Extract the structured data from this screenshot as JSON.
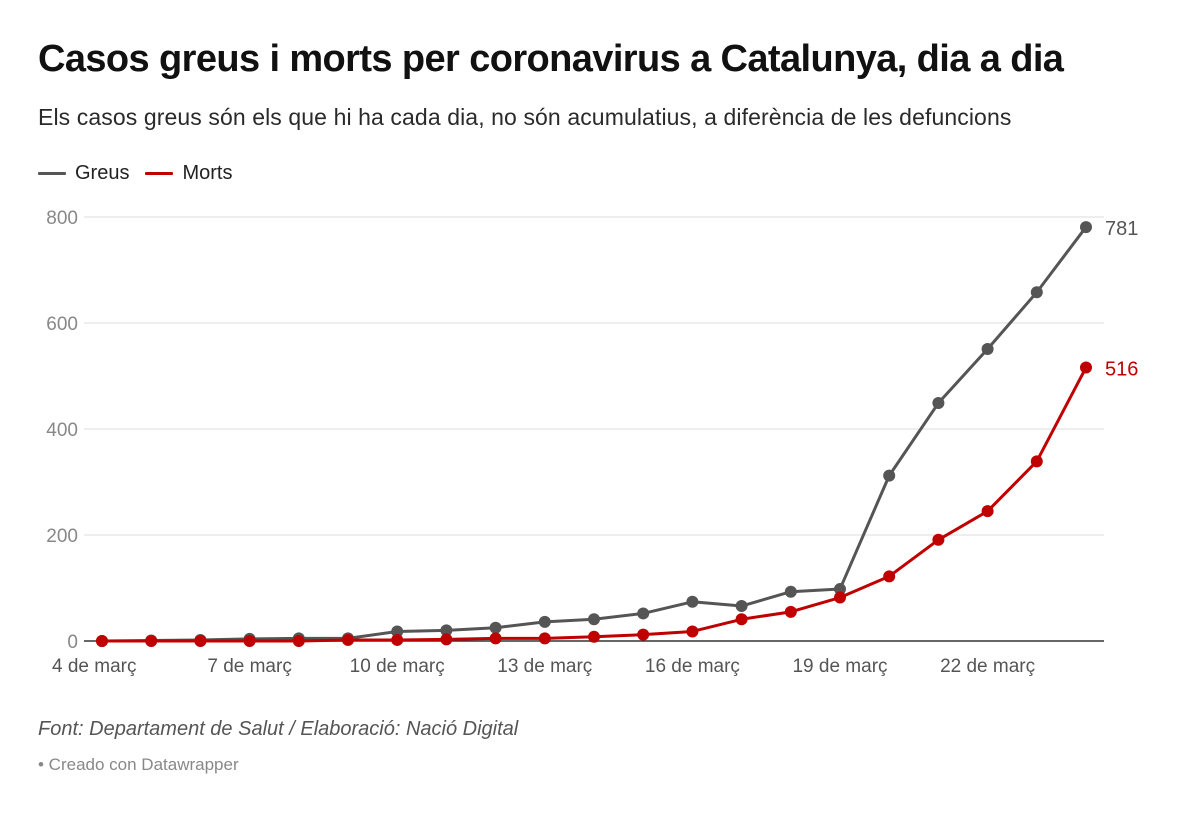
{
  "header": {
    "title": "Casos greus i morts per coronavirus a Catalunya, dia a dia",
    "subtitle": "Els casos greus són els que hi ha cada dia, no són acumulatius, a diferència de les defuncions"
  },
  "footer": {
    "source": "Font: Departament de Salut / Elaboració: Nació Digital",
    "credit": "• Creado con Datawrapper"
  },
  "chart_data": {
    "type": "line",
    "x": [
      "4 de març",
      "5 de març",
      "6 de març",
      "7 de març",
      "8 de març",
      "9 de març",
      "10 de març",
      "11 de març",
      "12 de març",
      "13 de març",
      "14 de març",
      "15 de març",
      "16 de març",
      "17 de març",
      "18 de març",
      "19 de març",
      "20 de març",
      "21 de març",
      "22 de març",
      "23 de març",
      "24 de març"
    ],
    "x_ticks": [
      "4 de març",
      "7 de març",
      "10 de març",
      "13 de març",
      "16 de març",
      "19 de març",
      "22 de març"
    ],
    "series": [
      {
        "name": "Greus",
        "color": "#555555",
        "values": [
          0,
          1,
          2,
          4,
          5,
          5,
          18,
          20,
          25,
          36,
          41,
          52,
          74,
          66,
          93,
          98,
          312,
          449,
          551,
          658,
          781
        ]
      },
      {
        "name": "Morts",
        "color": "#c00000",
        "values": [
          0,
          0,
          0,
          0,
          0,
          2,
          2,
          3,
          5,
          5,
          8,
          12,
          18,
          41,
          55,
          82,
          122,
          191,
          245,
          339,
          516
        ]
      }
    ],
    "end_labels": [
      "781",
      "516"
    ],
    "y_ticks": [
      "0",
      "200",
      "400",
      "600",
      "800"
    ],
    "ylim": [
      0,
      800
    ],
    "grid": true,
    "legend_position": "top-left"
  }
}
